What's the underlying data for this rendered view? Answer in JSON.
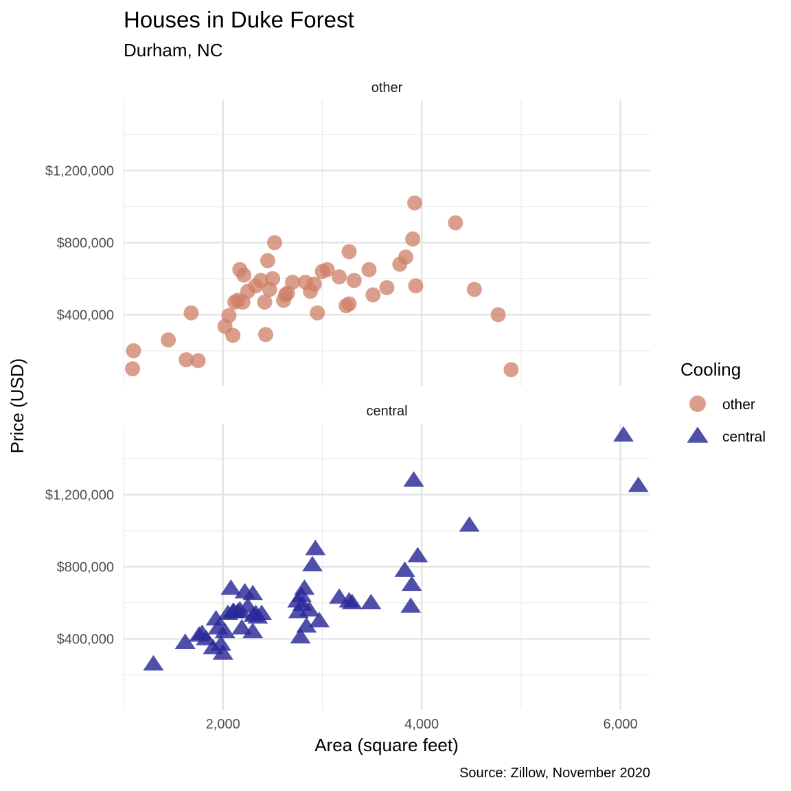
{
  "chart_data": {
    "type": "scatter",
    "title": "Houses in Duke Forest",
    "subtitle": "Durham, NC",
    "xlabel": "Area (square feet)",
    "ylabel": "Price (USD)",
    "caption": "Source: Zillow, November 2020",
    "xlim": [
      1000,
      6300
    ],
    "ylim": [
      5000,
      1590000
    ],
    "x_ticks": [
      2000,
      4000,
      6000
    ],
    "x_tick_labels": [
      "2,000",
      "4,000",
      "6,000"
    ],
    "y_ticks": [
      400000,
      800000,
      1200000
    ],
    "y_tick_labels": [
      "$400,000",
      "$800,000",
      "$1,200,000"
    ],
    "grid": true,
    "legend_position": "right",
    "legend_title": "Cooling",
    "panels": [
      {
        "name": "other",
        "color": "#CD7F65",
        "shape": "circle",
        "points": [
          [
            1090,
            100000
          ],
          [
            1100,
            200000
          ],
          [
            1450,
            260000
          ],
          [
            1630,
            150000
          ],
          [
            1680,
            410000
          ],
          [
            1750,
            145000
          ],
          [
            2020,
            335000
          ],
          [
            2060,
            395000
          ],
          [
            2100,
            285000
          ],
          [
            2120,
            470000
          ],
          [
            2150,
            480000
          ],
          [
            2170,
            650000
          ],
          [
            2200,
            470000
          ],
          [
            2210,
            620000
          ],
          [
            2250,
            530000
          ],
          [
            2330,
            560000
          ],
          [
            2380,
            590000
          ],
          [
            2420,
            470000
          ],
          [
            2430,
            290000
          ],
          [
            2450,
            700000
          ],
          [
            2470,
            540000
          ],
          [
            2500,
            600000
          ],
          [
            2520,
            800000
          ],
          [
            2610,
            480000
          ],
          [
            2630,
            510000
          ],
          [
            2650,
            520000
          ],
          [
            2700,
            580000
          ],
          [
            2830,
            580000
          ],
          [
            2880,
            530000
          ],
          [
            2920,
            570000
          ],
          [
            2950,
            410000
          ],
          [
            3000,
            640000
          ],
          [
            3050,
            650000
          ],
          [
            3170,
            610000
          ],
          [
            3240,
            450000
          ],
          [
            3270,
            460000
          ],
          [
            3270,
            750000
          ],
          [
            3320,
            590000
          ],
          [
            3470,
            650000
          ],
          [
            3510,
            510000
          ],
          [
            3650,
            550000
          ],
          [
            3780,
            680000
          ],
          [
            3840,
            720000
          ],
          [
            3910,
            820000
          ],
          [
            3930,
            1020000
          ],
          [
            3940,
            560000
          ],
          [
            4340,
            910000
          ],
          [
            4530,
            540000
          ],
          [
            4770,
            400000
          ],
          [
            4900,
            95000
          ]
        ]
      },
      {
        "name": "central",
        "color": "#2A2A98",
        "shape": "triangle",
        "points": [
          [
            1300,
            260000
          ],
          [
            1620,
            380000
          ],
          [
            1760,
            420000
          ],
          [
            1790,
            430000
          ],
          [
            1830,
            400000
          ],
          [
            1900,
            350000
          ],
          [
            1930,
            510000
          ],
          [
            1950,
            460000
          ],
          [
            1980,
            370000
          ],
          [
            2000,
            320000
          ],
          [
            2020,
            440000
          ],
          [
            2050,
            540000
          ],
          [
            2080,
            680000
          ],
          [
            2100,
            550000
          ],
          [
            2110,
            550000
          ],
          [
            2150,
            550000
          ],
          [
            2170,
            560000
          ],
          [
            2190,
            460000
          ],
          [
            2220,
            660000
          ],
          [
            2250,
            580000
          ],
          [
            2300,
            440000
          ],
          [
            2300,
            650000
          ],
          [
            2310,
            530000
          ],
          [
            2330,
            540000
          ],
          [
            2350,
            520000
          ],
          [
            2390,
            540000
          ],
          [
            2750,
            610000
          ],
          [
            2760,
            550000
          ],
          [
            2780,
            410000
          ],
          [
            2790,
            640000
          ],
          [
            2800,
            590000
          ],
          [
            2820,
            680000
          ],
          [
            2840,
            470000
          ],
          [
            2870,
            560000
          ],
          [
            2900,
            810000
          ],
          [
            2930,
            900000
          ],
          [
            2970,
            500000
          ],
          [
            3170,
            630000
          ],
          [
            3270,
            610000
          ],
          [
            3300,
            600000
          ],
          [
            3490,
            600000
          ],
          [
            3830,
            780000
          ],
          [
            3890,
            580000
          ],
          [
            3900,
            700000
          ],
          [
            3920,
            1280000
          ],
          [
            3960,
            860000
          ],
          [
            4480,
            1030000
          ],
          [
            6030,
            1530000
          ],
          [
            6180,
            1250000
          ]
        ]
      }
    ]
  }
}
